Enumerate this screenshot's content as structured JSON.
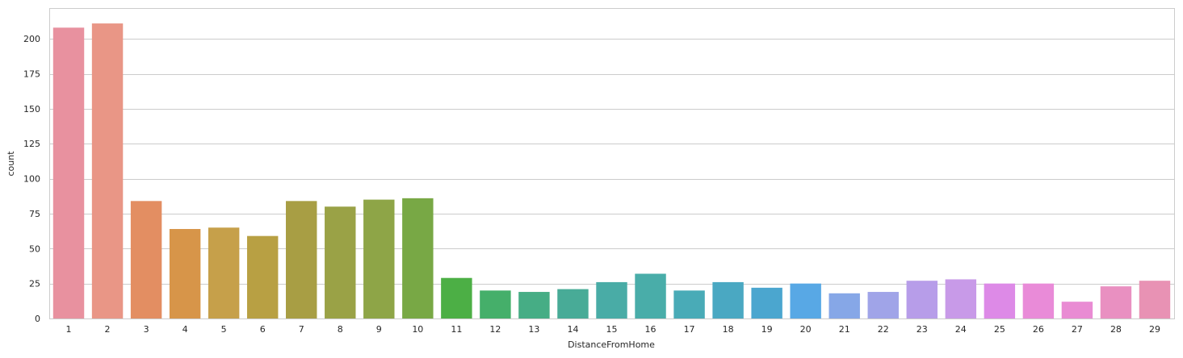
{
  "chart_data": {
    "type": "bar",
    "xlabel": "DistanceFromHome",
    "ylabel": "count",
    "ylim": [
      0,
      222
    ],
    "yticks": [
      0,
      25,
      50,
      75,
      100,
      125,
      150,
      175,
      200
    ],
    "grid": "horizontal",
    "categories": [
      "1",
      "2",
      "3",
      "4",
      "5",
      "6",
      "7",
      "8",
      "9",
      "10",
      "11",
      "12",
      "13",
      "14",
      "15",
      "16",
      "17",
      "18",
      "19",
      "20",
      "21",
      "22",
      "23",
      "24",
      "25",
      "26",
      "27",
      "28",
      "29"
    ],
    "values": [
      208,
      211,
      84,
      64,
      65,
      59,
      84,
      80,
      85,
      86,
      29,
      20,
      19,
      21,
      26,
      32,
      20,
      26,
      22,
      25,
      18,
      19,
      27,
      28,
      25,
      25,
      12,
      23,
      27
    ],
    "colors": [
      "#e8919f",
      "#e99686",
      "#e38e62",
      "#d79549",
      "#c6a04a",
      "#b8a043",
      "#a89e44",
      "#9aa246",
      "#8ea547",
      "#78a845",
      "#4caf45",
      "#45af6a",
      "#46ad85",
      "#48ab97",
      "#49aca6",
      "#49ada9",
      "#49abb7",
      "#4aa8c2",
      "#4ba6cf",
      "#58a8e5",
      "#86a7e7",
      "#a0a4e8",
      "#b79de9",
      "#c89ae8",
      "#dd8ae7",
      "#e98bd8",
      "#e98bd3",
      "#e990c1",
      "#e892b4"
    ]
  }
}
